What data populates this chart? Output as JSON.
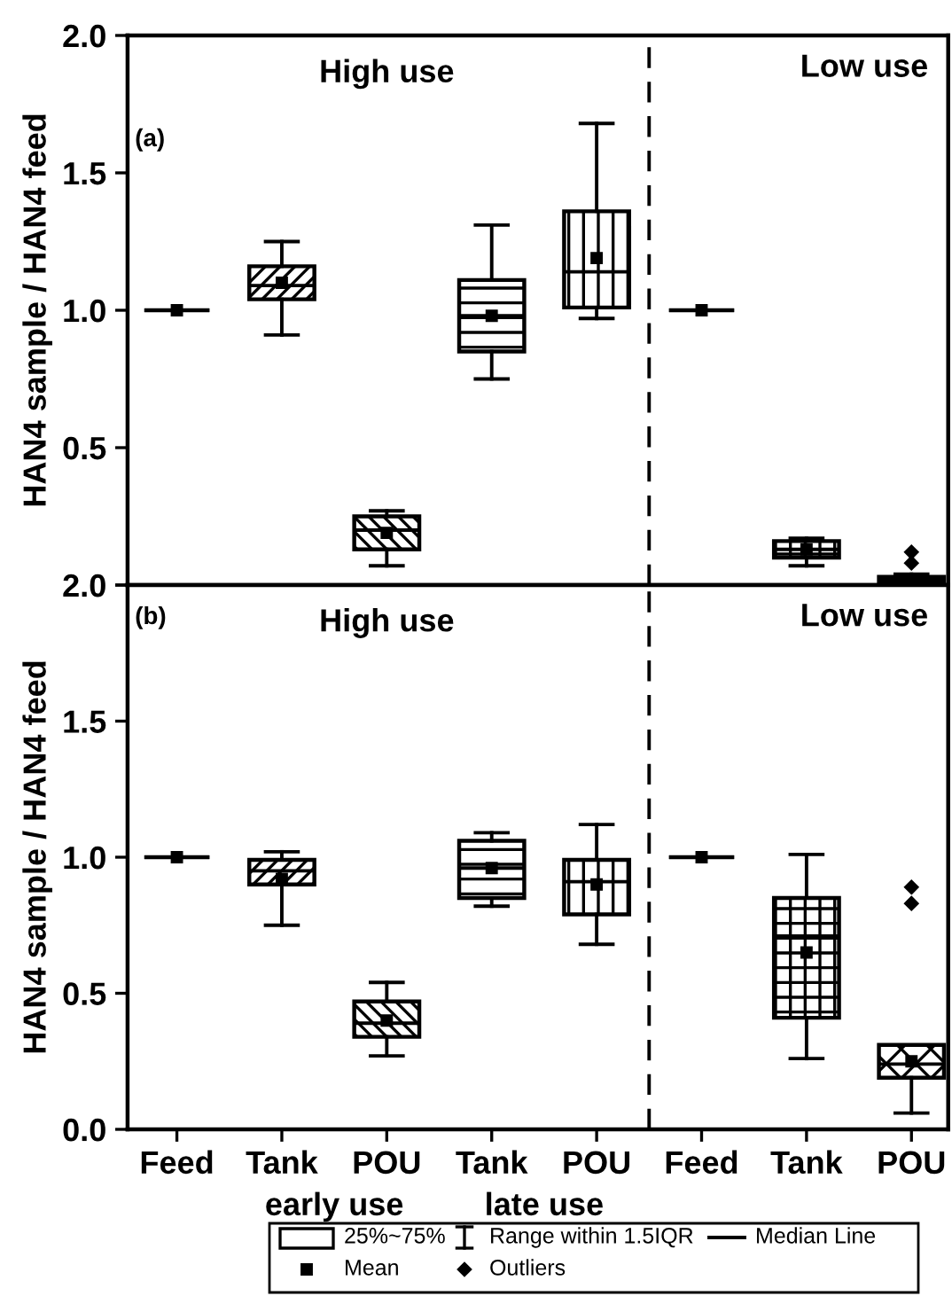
{
  "chart_data": [
    {
      "type": "box",
      "ylabel": "HAN4 sample / HAN4 feed",
      "categories": [
        null,
        null,
        null,
        null,
        null,
        null,
        null,
        null
      ],
      "ylim": [
        0,
        2.0
      ],
      "yticks": [
        {
          "value": 0,
          "label": null
        },
        {
          "value": 0.5,
          "label": "0.5"
        },
        {
          "value": 1,
          "label": "1.0"
        },
        {
          "value": 1.5,
          "label": "1.5"
        },
        {
          "value": 2,
          "label": "2.0"
        }
      ],
      "tick_labels": "y",
      "grid": false,
      "boxes": [
        {
          "low": 1.0,
          "q1": 1.0,
          "median": 1.0,
          "q3": 1.0,
          "high": 1.0,
          "mean": 1.0
        },
        {
          "low": 0.91,
          "q1": 1.04,
          "median": 1.09,
          "q3": 1.16,
          "high": 1.25,
          "mean": 1.1
        },
        {
          "low": 0.07,
          "q1": 0.13,
          "median": 0.2,
          "q3": 0.25,
          "high": 0.27,
          "mean": 0.19
        },
        {
          "low": 0.75,
          "q1": 0.85,
          "median": 0.98,
          "q3": 1.11,
          "high": 1.31,
          "mean": 0.98
        },
        {
          "low": 0.97,
          "q1": 1.01,
          "median": 1.14,
          "q3": 1.36,
          "high": 1.68,
          "mean": 1.19
        },
        {
          "low": 1.0,
          "q1": 1.0,
          "median": 1.0,
          "q3": 1.0,
          "high": 1.0,
          "mean": 1.0
        },
        {
          "low": 0.07,
          "q1": 0.1,
          "median": 0.13,
          "q3": 0.16,
          "high": 0.17,
          "mean": 0.13
        },
        {
          "low": 0.01,
          "q1": 0.01,
          "median": 0.02,
          "q3": 0.03,
          "high": 0.04,
          "mean": 0.02,
          "outliers": [
            0.12,
            0.08
          ]
        }
      ],
      "annotations": [
        "High use",
        "Low use",
        "(a)"
      ]
    },
    {
      "type": "box",
      "ylabel": "HAN4 sample / HAN4 feed",
      "categories": [
        "Feed",
        "Tank",
        "POU",
        "Tank",
        "POU",
        "Feed",
        "Tank",
        "POU"
      ],
      "ylim": [
        0,
        2.0
      ],
      "yticks": [
        {
          "value": 0,
          "label": "0.0"
        },
        {
          "value": 0.5,
          "label": "0.5"
        },
        {
          "value": 1,
          "label": "1.0"
        },
        {
          "value": 1.5,
          "label": "1.5"
        },
        {
          "value": 2,
          "label": "2.0"
        }
      ],
      "grid": false,
      "boxes": [
        {
          "low": 1.0,
          "q1": 1.0,
          "median": 1.0,
          "q3": 1.0,
          "high": 1.0,
          "mean": 1.0
        },
        {
          "low": 0.75,
          "q1": 0.9,
          "median": 0.95,
          "q3": 0.99,
          "high": 1.02,
          "mean": 0.92
        },
        {
          "low": 0.27,
          "q1": 0.34,
          "median": 0.39,
          "q3": 0.47,
          "high": 0.54,
          "mean": 0.4
        },
        {
          "low": 0.82,
          "q1": 0.85,
          "median": 0.96,
          "q3": 1.06,
          "high": 1.09,
          "mean": 0.96
        },
        {
          "low": 0.68,
          "q1": 0.79,
          "median": 0.91,
          "q3": 0.99,
          "high": 1.12,
          "mean": 0.9
        },
        {
          "low": 1.0,
          "q1": 1.0,
          "median": 1.0,
          "q3": 1.0,
          "high": 1.0,
          "mean": 1.0
        },
        {
          "low": 0.26,
          "q1": 0.41,
          "median": 0.71,
          "q3": 0.85,
          "high": 1.01,
          "mean": 0.65
        },
        {
          "low": 0.06,
          "q1": 0.19,
          "median": 0.24,
          "q3": 0.31,
          "high": 0.31,
          "mean": 0.25,
          "outliers": [
            0.89,
            0.83
          ]
        }
      ],
      "annotations": [
        "High use",
        "Low use",
        "(b)",
        "early use",
        "late use",
        "25%~75%",
        "Range within 1.5IQR",
        "Median Line",
        "Mean",
        "Outliers"
      ]
    }
  ]
}
